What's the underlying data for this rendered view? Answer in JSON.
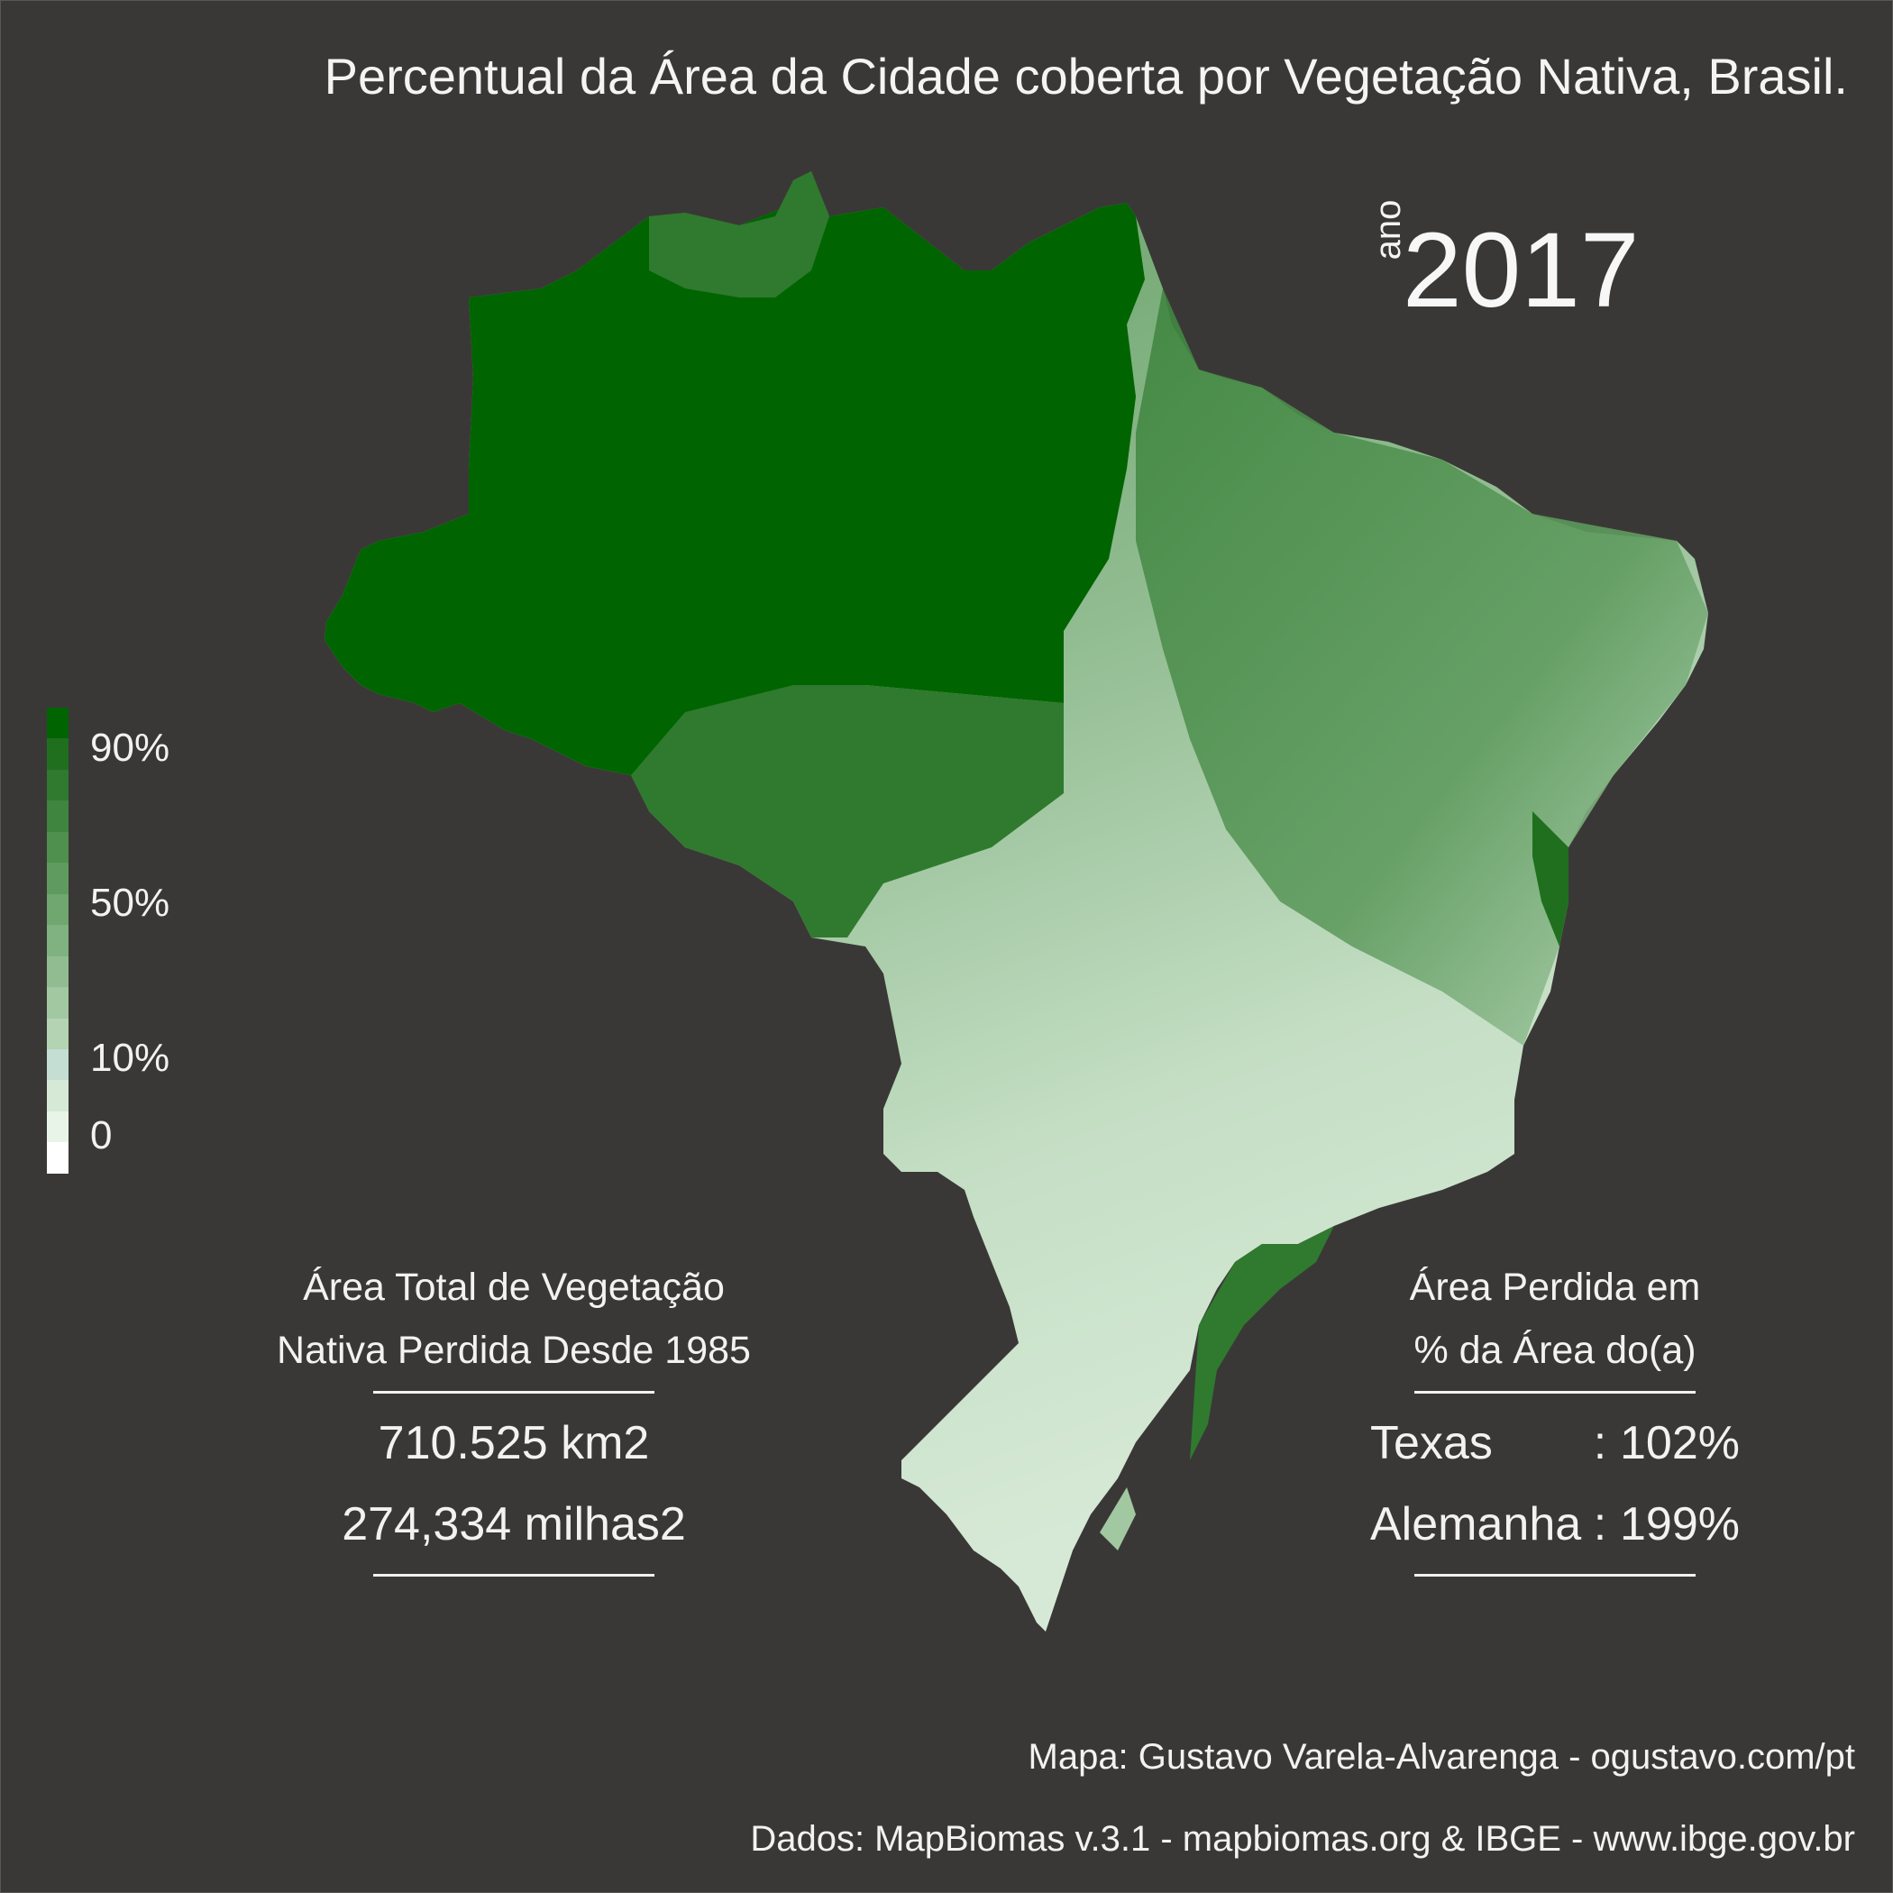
{
  "title": "Percentual da Área da Cidade coberta por Vegetação Nativa, Brasil.",
  "year": {
    "prefix": "ano",
    "value": "2017"
  },
  "legend": {
    "labels": [
      "90%",
      "50%",
      "10%",
      "0"
    ],
    "colors": [
      "#006400",
      "#1f6f1f",
      "#2f7a2f",
      "#3f853f",
      "#4f904f",
      "#5f9b5f",
      "#70a670",
      "#80b180",
      "#91bc91",
      "#a2c8a2",
      "#b3d3b3",
      "#c4ded4",
      "#d6e9d6",
      "#e8f4e8",
      "#ffffff"
    ]
  },
  "stats_left": {
    "heading_line1": "Área Total de Vegetação",
    "heading_line2": "Nativa Perdida Desde 1985",
    "value_km2": "710.525 km2",
    "value_miles": "274,334 milhas2"
  },
  "stats_right": {
    "heading_line1": "Área Perdida em",
    "heading_line2": "% da Área do(a)",
    "rows": [
      {
        "name": "Texas",
        "sep": ":",
        "value": "102%"
      },
      {
        "name": "Alemanha",
        "sep": ":",
        "value": "199%"
      }
    ]
  },
  "credits": {
    "map": "Mapa: Gustavo Varela-Alvarenga - ogustavo.com/pt",
    "data": "Dados: MapBiomas v.3.1 - mapbiomas.org & IBGE - www.ibge.gov.br"
  }
}
